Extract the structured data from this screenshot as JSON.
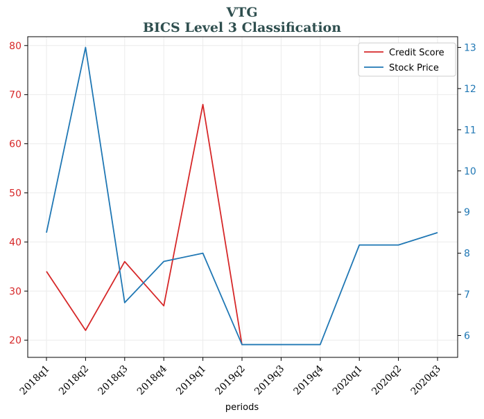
{
  "chart_data": {
    "type": "line",
    "title": "VTG",
    "subtitle": "BICS Level 3 Classification",
    "xlabel": "periods",
    "categories": [
      "2018q1",
      "2018q2",
      "2018q3",
      "2018q4",
      "2019q1",
      "2019q2",
      "2019q3",
      "2019q4",
      "2020q1",
      "2020q2",
      "2020q3"
    ],
    "y_left": {
      "ylim": [
        16.5,
        81.8
      ],
      "ticks": [
        20,
        30,
        40,
        50,
        60,
        70,
        80
      ],
      "color": "#d62728"
    },
    "y_right": {
      "ylim": [
        5.47,
        13.26
      ],
      "ticks": [
        6,
        7,
        8,
        9,
        10,
        11,
        12,
        13
      ],
      "color": "#1f77b4"
    },
    "grid": true,
    "legend_placement": "top-right",
    "series": [
      {
        "name": "Credit Score",
        "axis": "left",
        "color": "#d62728",
        "values": [
          34,
          22,
          36,
          27,
          68,
          19,
          null,
          null,
          null,
          null,
          null
        ]
      },
      {
        "name": "Stock Price",
        "axis": "right",
        "color": "#1f77b4",
        "values": [
          8.5,
          13.0,
          6.8,
          7.8,
          8.0,
          5.78,
          5.78,
          5.78,
          8.2,
          8.2,
          8.5
        ]
      }
    ]
  }
}
